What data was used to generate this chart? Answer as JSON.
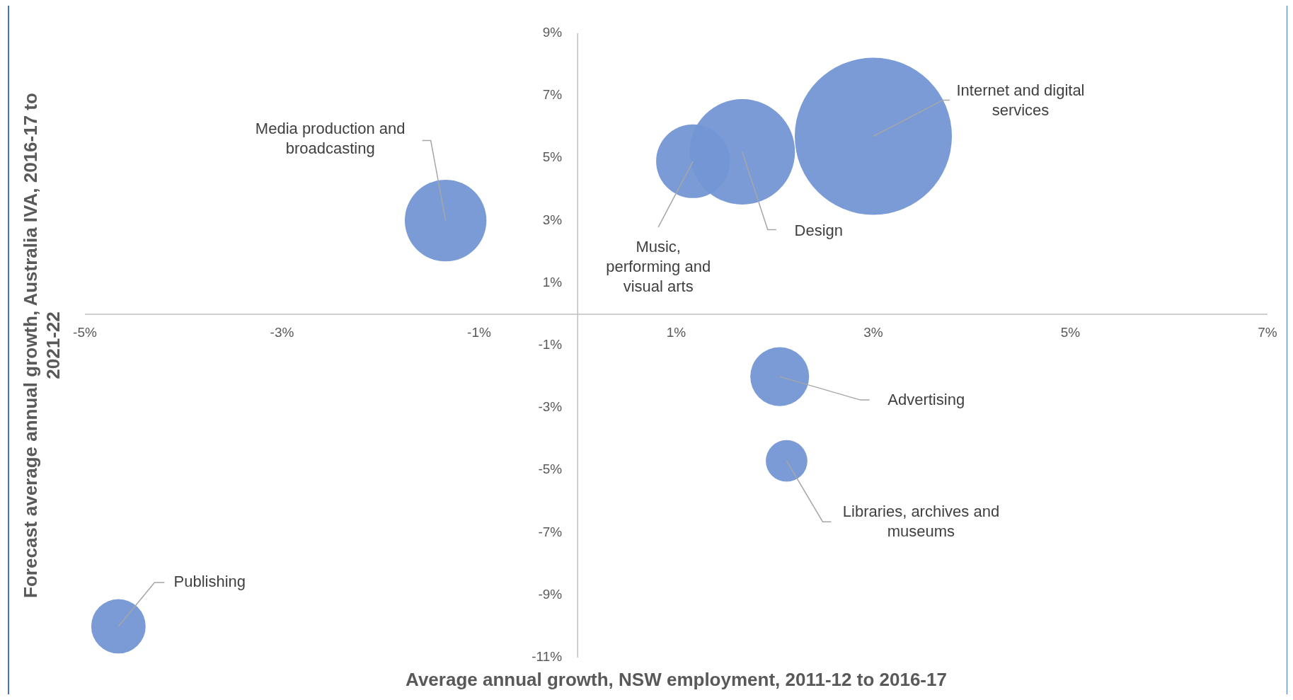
{
  "chart_data": {
    "type": "bubble",
    "xlabel": "Average annual growth, NSW employment, 2011-12 to 2016-17",
    "ylabel": "Forecast average annual growth, Australia IVA, 2016-17 to 2021-22",
    "xlim": [
      -5,
      7
    ],
    "xticks": [
      {
        "value": -5,
        "label": "-5%"
      },
      {
        "value": -3,
        "label": "-3%"
      },
      {
        "value": -1,
        "label": "-1%"
      },
      {
        "value": 1,
        "label": "1%"
      },
      {
        "value": 3,
        "label": "3%"
      },
      {
        "value": 5,
        "label": "5%"
      },
      {
        "value": 7,
        "label": "7%"
      }
    ],
    "ylim": [
      -11,
      9
    ],
    "yticks": [
      {
        "value": -11,
        "label": "-11%"
      },
      {
        "value": -9,
        "label": "-9%"
      },
      {
        "value": -7,
        "label": "-7%"
      },
      {
        "value": -5,
        "label": "-5%"
      },
      {
        "value": -3,
        "label": "-3%"
      },
      {
        "value": -1,
        "label": "-1%"
      },
      {
        "value": 1,
        "label": "1%"
      },
      {
        "value": 3,
        "label": "3%"
      },
      {
        "value": 5,
        "label": "5%"
      },
      {
        "value": 7,
        "label": "7%"
      },
      {
        "value": 9,
        "label": "9%"
      }
    ],
    "grid": false,
    "series": [
      {
        "name": "Media production and broadcasting",
        "color": "#7396d4",
        "x": [
          -1.34
        ],
        "values": [
          3.0
        ],
        "sizes": [
          0.27
        ]
      },
      {
        "name": "Design",
        "color": "#7396d4",
        "x": [
          1.67
        ],
        "values": [
          5.2
        ],
        "sizes": [
          0.45
        ]
      },
      {
        "name": "Music, performing and visual arts",
        "color": "#7396d4",
        "x": [
          1.17
        ],
        "values": [
          4.9
        ],
        "sizes": [
          0.22
        ]
      },
      {
        "name": "Internet and digital services",
        "color": "#7396d4",
        "x": [
          3.0
        ],
        "values": [
          5.7
        ],
        "sizes": [
          1
        ]
      },
      {
        "name": "Advertising",
        "color": "#7396d4",
        "x": [
          2.05
        ],
        "values": [
          -2.0
        ],
        "sizes": [
          0.14
        ]
      },
      {
        "name": "Libraries, archives and museums",
        "color": "#7396d4",
        "x": [
          2.12
        ],
        "values": [
          -4.7
        ],
        "sizes": [
          0.07
        ]
      },
      {
        "name": "Publishing",
        "color": "#7396d4",
        "x": [
          -4.66
        ],
        "values": [
          -10.0
        ],
        "sizes": [
          0.12
        ]
      }
    ]
  }
}
